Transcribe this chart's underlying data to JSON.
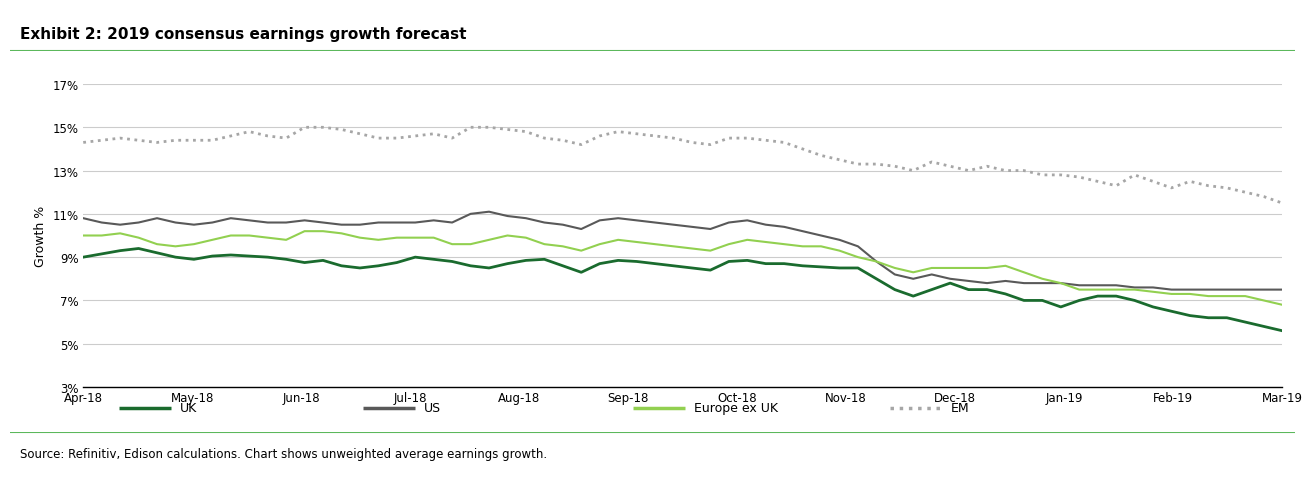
{
  "title": "Exhibit 2: 2019 consensus earnings growth forecast",
  "ylabel": "Growth %",
  "source_text": "Source: Refinitiv, Edison calculations. Chart shows unweighted average earnings growth.",
  "xtick_labels": [
    "Apr-18",
    "May-18",
    "Jun-18",
    "Jul-18",
    "Aug-18",
    "Sep-18",
    "Oct-18",
    "Nov-18",
    "Dec-18",
    "Jan-19",
    "Feb-19",
    "Mar-19"
  ],
  "ytick_values": [
    3,
    5,
    7,
    9,
    11,
    13,
    15,
    17
  ],
  "ylim": [
    3,
    17
  ],
  "background_color": "#ffffff",
  "header_bg": "#e8e8e8",
  "footer_bg": "#e8e8e8",
  "separator_color": "#5cb85c",
  "grid_color": "#cccccc",
  "series": {
    "UK": {
      "color": "#1a6b2e",
      "linestyle": "-",
      "linewidth": 2.0,
      "values": [
        9.0,
        9.15,
        9.3,
        9.4,
        9.2,
        9.0,
        8.9,
        9.05,
        9.1,
        9.05,
        9.0,
        8.9,
        8.75,
        8.85,
        8.6,
        8.5,
        8.6,
        8.75,
        9.0,
        8.9,
        8.8,
        8.6,
        8.5,
        8.7,
        8.85,
        8.9,
        8.6,
        8.3,
        8.7,
        8.85,
        8.8,
        8.7,
        8.6,
        8.5,
        8.4,
        8.8,
        8.85,
        8.7,
        8.7,
        8.6,
        8.55,
        8.5,
        8.5,
        8.0,
        7.5,
        7.2,
        7.5,
        7.8,
        7.5,
        7.5,
        7.3,
        7.0,
        7.0,
        6.7,
        7.0,
        7.2,
        7.2,
        7.0,
        6.7,
        6.5,
        6.3,
        6.2,
        6.2,
        6.0,
        5.8,
        5.6
      ]
    },
    "US": {
      "color": "#595959",
      "linestyle": "-",
      "linewidth": 1.5,
      "values": [
        10.8,
        10.6,
        10.5,
        10.6,
        10.8,
        10.6,
        10.5,
        10.6,
        10.8,
        10.7,
        10.6,
        10.6,
        10.7,
        10.6,
        10.5,
        10.5,
        10.6,
        10.6,
        10.6,
        10.7,
        10.6,
        11.0,
        11.1,
        10.9,
        10.8,
        10.6,
        10.5,
        10.3,
        10.7,
        10.8,
        10.7,
        10.6,
        10.5,
        10.4,
        10.3,
        10.6,
        10.7,
        10.5,
        10.4,
        10.2,
        10.0,
        9.8,
        9.5,
        8.8,
        8.2,
        8.0,
        8.2,
        8.0,
        7.9,
        7.8,
        7.9,
        7.8,
        7.8,
        7.8,
        7.7,
        7.7,
        7.7,
        7.6,
        7.6,
        7.5,
        7.5,
        7.5,
        7.5,
        7.5,
        7.5,
        7.5
      ]
    },
    "Europe ex UK": {
      "color": "#92d050",
      "linestyle": "-",
      "linewidth": 1.5,
      "values": [
        10.0,
        10.0,
        10.1,
        9.9,
        9.6,
        9.5,
        9.6,
        9.8,
        10.0,
        10.0,
        9.9,
        9.8,
        10.2,
        10.2,
        10.1,
        9.9,
        9.8,
        9.9,
        9.9,
        9.9,
        9.6,
        9.6,
        9.8,
        10.0,
        9.9,
        9.6,
        9.5,
        9.3,
        9.6,
        9.8,
        9.7,
        9.6,
        9.5,
        9.4,
        9.3,
        9.6,
        9.8,
        9.7,
        9.6,
        9.5,
        9.5,
        9.3,
        9.0,
        8.8,
        8.5,
        8.3,
        8.5,
        8.5,
        8.5,
        8.5,
        8.6,
        8.3,
        8.0,
        7.8,
        7.5,
        7.5,
        7.5,
        7.5,
        7.4,
        7.3,
        7.3,
        7.2,
        7.2,
        7.2,
        7.0,
        6.8
      ]
    },
    "EM": {
      "color": "#a6a6a6",
      "linestyle": "dotted",
      "linewidth": 2.0,
      "values": [
        14.3,
        14.4,
        14.5,
        14.4,
        14.3,
        14.4,
        14.4,
        14.4,
        14.6,
        14.8,
        14.6,
        14.5,
        15.0,
        15.0,
        14.9,
        14.7,
        14.5,
        14.5,
        14.6,
        14.7,
        14.5,
        15.0,
        15.0,
        14.9,
        14.8,
        14.5,
        14.4,
        14.2,
        14.6,
        14.8,
        14.7,
        14.6,
        14.5,
        14.3,
        14.2,
        14.5,
        14.5,
        14.4,
        14.3,
        14.0,
        13.7,
        13.5,
        13.3,
        13.3,
        13.2,
        13.0,
        13.4,
        13.2,
        13.0,
        13.2,
        13.0,
        13.0,
        12.8,
        12.8,
        12.7,
        12.5,
        12.3,
        12.8,
        12.5,
        12.2,
        12.5,
        12.3,
        12.2,
        12.0,
        11.8,
        11.5
      ]
    }
  },
  "legend_entries": [
    {
      "label": "UK",
      "color": "#1a6b2e",
      "linestyle": "-"
    },
    {
      "label": "US",
      "color": "#595959",
      "linestyle": "-"
    },
    {
      "label": "Europe ex UK",
      "color": "#92d050",
      "linestyle": "-"
    },
    {
      "label": "EM",
      "color": "#a6a6a6",
      "linestyle": "dotted"
    }
  ]
}
